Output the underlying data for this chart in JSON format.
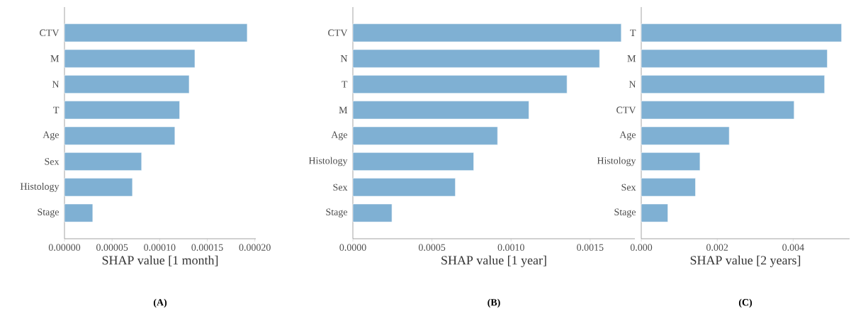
{
  "chart_data": [
    {
      "type": "bar",
      "orientation": "horizontal",
      "color": "#7fb0d3",
      "xlabel": "SHAP value [1 month]",
      "annotations": [
        "(A)"
      ],
      "categories": [
        "CTV",
        "M",
        "N",
        "T",
        "Age",
        "Sex",
        "Histology",
        "Stage"
      ],
      "values": [
        0.000192,
        0.000137,
        0.000131,
        0.000121,
        0.000116,
        8.1e-05,
        7.14e-05,
        2.97e-05
      ],
      "xlim": [
        0,
        0.000201
      ],
      "xticks": [
        {
          "value": 0,
          "label": "0.00000"
        },
        {
          "value": 5e-05,
          "label": "0.00005"
        },
        {
          "value": 0.0001,
          "label": "0.00010"
        },
        {
          "value": 0.00015,
          "label": "0.00015"
        },
        {
          "value": 0.0002,
          "label": "0.00020"
        }
      ]
    },
    {
      "type": "bar",
      "orientation": "horizontal",
      "color": "#7fb0d3",
      "xlabel": "SHAP value [1 year]",
      "annotations": [
        "(B)"
      ],
      "categories": [
        "CTV",
        "N",
        "T",
        "M",
        "Age",
        "Histology",
        "Sex",
        "Stage"
      ],
      "values": [
        0.001697,
        0.00156,
        0.001354,
        0.001113,
        0.000915,
        0.000764,
        0.000648,
        0.000247
      ],
      "xlim": [
        0,
        0.001783
      ],
      "xticks": [
        {
          "value": 0,
          "label": "0.0000"
        },
        {
          "value": 0.0005,
          "label": "0.0005"
        },
        {
          "value": 0.001,
          "label": "0.0010"
        },
        {
          "value": 0.0015,
          "label": "0.0015"
        }
      ]
    },
    {
      "type": "bar",
      "orientation": "horizontal",
      "color": "#7fb0d3",
      "xlabel": "SHAP value [2 years]",
      "annotations": [
        "(C)"
      ],
      "categories": [
        "T",
        "M",
        "N",
        "CTV",
        "Age",
        "Histology",
        "Sex",
        "Stage"
      ],
      "values": [
        0.005275,
        0.0049,
        0.004828,
        0.004026,
        0.002317,
        0.001547,
        0.001428,
        0.000701
      ],
      "xlim": [
        0,
        0.005486
      ],
      "xticks": [
        {
          "value": 0,
          "label": "0.000"
        },
        {
          "value": 0.002,
          "label": "0.002"
        },
        {
          "value": 0.004,
          "label": "0.004"
        }
      ]
    }
  ]
}
